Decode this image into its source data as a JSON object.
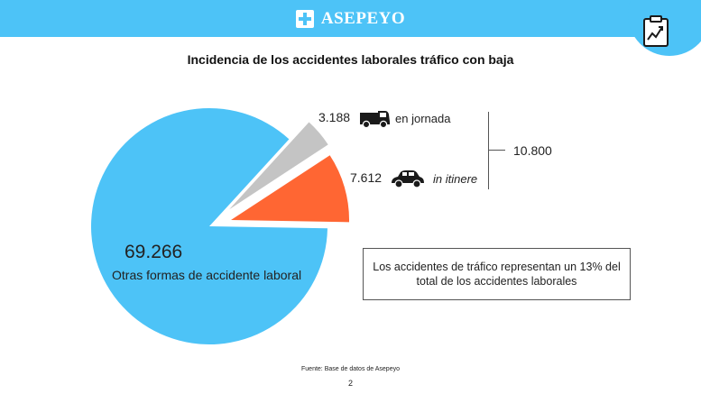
{
  "brand": {
    "name": "ASEPEYO",
    "color": "#4dc3f7",
    "logo_icon": "cross-icon",
    "corner_icon": "chart-clipboard-icon"
  },
  "chart_data": {
    "type": "pie",
    "title": "Incidencia de los accidentes laborales tráfico con baja",
    "slices": [
      {
        "label": "Otras formas de accidente laboral",
        "value": 69266,
        "display": "69.266",
        "color": "#4dc3f7"
      },
      {
        "label": "in itinere",
        "value": 7612,
        "display": "7.612",
        "color": "#ff6633",
        "icon": "car-icon"
      },
      {
        "label": "en jornada",
        "value": 3188,
        "display": "3.188",
        "color": "#c4c4c4",
        "icon": "van-icon"
      }
    ],
    "traffic_total": {
      "value": 10800,
      "display": "10.800"
    }
  },
  "note": "Los accidentes de tráfico representan un 13% del total de los accidentes laborales",
  "footer": {
    "source": "Fuente: Base de datos de Asepeyo",
    "page": "2"
  }
}
